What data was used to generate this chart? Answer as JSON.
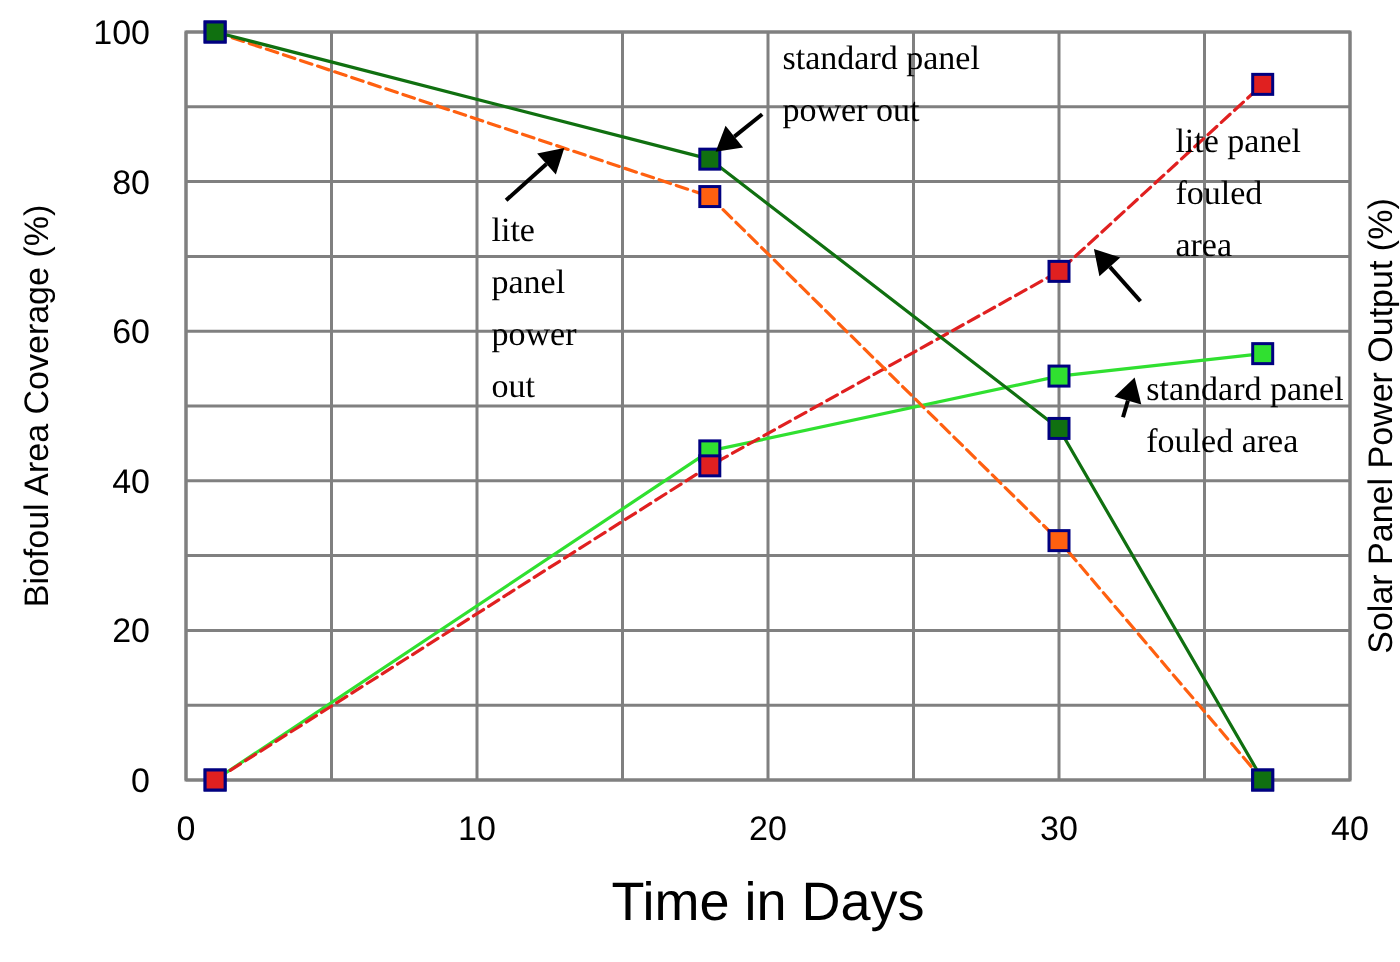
{
  "chart_data": {
    "type": "line",
    "xlabel": "Time in Days",
    "ylabel": "Biofoul Area Coverage (%)",
    "y2label": "Solar Panel Power Output (%)",
    "xlim": [
      0,
      40
    ],
    "xticks": [
      0,
      {
        "value": 5,
        "label": null
      },
      10,
      {
        "value": 15,
        "label": null
      },
      20,
      {
        "value": 25,
        "label": null
      },
      30,
      {
        "value": 35,
        "label": null
      },
      40
    ],
    "ylim": [
      0,
      100
    ],
    "yticks": [
      0,
      {
        "value": 10,
        "label": null
      },
      20,
      {
        "value": 30,
        "label": null
      },
      40,
      {
        "value": 50,
        "label": null
      },
      60,
      {
        "value": 70,
        "label": null
      },
      80,
      {
        "value": 90,
        "label": null
      },
      100
    ],
    "grid": true,
    "marker": "square",
    "x": [
      1,
      18,
      30,
      37
    ],
    "series": [
      {
        "name": "standard panel power out",
        "color": "#107010",
        "line_style": "solid",
        "values": [
          100,
          83,
          47,
          0
        ]
      },
      {
        "name": "lite panel power out",
        "color": "#ff6010",
        "line_style": "dashed",
        "values": [
          100,
          78,
          32,
          0
        ]
      },
      {
        "name": "lite panel fouled area",
        "color": "#e02020",
        "line_style": "dashed",
        "values": [
          0,
          42,
          68,
          93
        ]
      },
      {
        "name": "standard panel fouled area",
        "color": "#30e030",
        "line_style": "solid",
        "values": [
          0,
          44,
          54,
          57
        ]
      }
    ]
  }
}
